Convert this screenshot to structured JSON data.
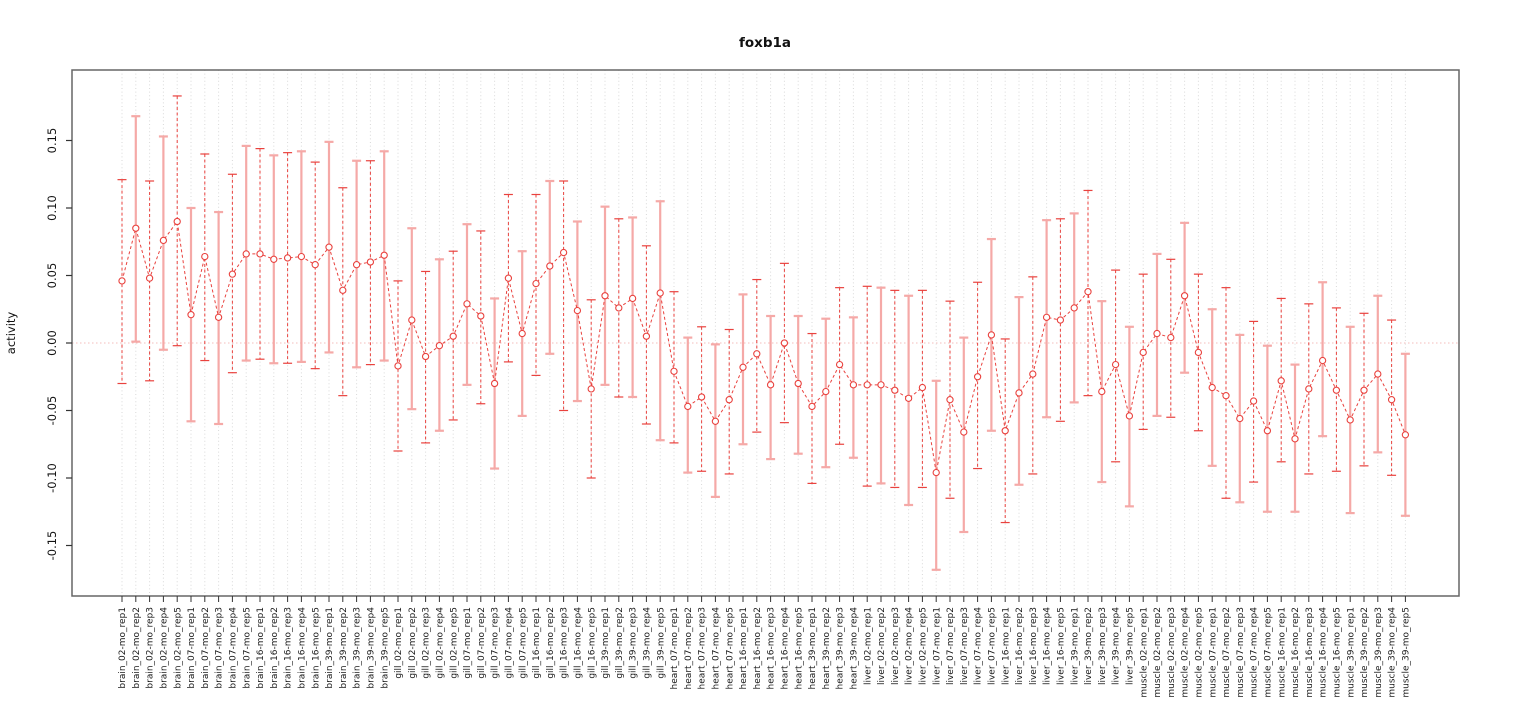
{
  "chart_data": {
    "type": "line",
    "title": "foxb1a",
    "ylabel": "activity",
    "xlabel": "",
    "ylim": [
      -0.187,
      0.202
    ],
    "legend": "none",
    "grid": "vertical dotted line at every sample position",
    "zero_reference_line": 0.0,
    "yticks": [
      {
        "value": 0.15,
        "label": "0.15"
      },
      {
        "value": 0.1,
        "label": "0.10"
      },
      {
        "value": 0.05,
        "label": "0.05"
      },
      {
        "value": 0.0,
        "label": "0.00"
      },
      {
        "value": -0.05,
        "label": "-0.05"
      },
      {
        "value": -0.1,
        "label": "-0.10"
      },
      {
        "value": -0.15,
        "label": "-0.15"
      }
    ],
    "colors": {
      "series": "#e9423e",
      "error_bar": "#f5a9a7",
      "zero_line": "#f5bdbb",
      "grid": "#d9d9d9",
      "axis": "#666666",
      "tick": "#333333",
      "text": "#111111"
    },
    "samples": [
      {
        "label": "brain_02-mo_rep1",
        "mean": 0.046,
        "lo": -0.03,
        "hi": 0.121
      },
      {
        "label": "brain_02-mo_rep2",
        "mean": 0.085,
        "lo": 0.001,
        "hi": 0.168
      },
      {
        "label": "brain_02-mo_rep3",
        "mean": 0.048,
        "lo": -0.028,
        "hi": 0.12
      },
      {
        "label": "brain_02-mo_rep4",
        "mean": 0.076,
        "lo": -0.005,
        "hi": 0.153
      },
      {
        "label": "brain_02-mo_rep5",
        "mean": 0.09,
        "lo": -0.002,
        "hi": 0.183
      },
      {
        "label": "brain_07-mo_rep1",
        "mean": 0.021,
        "lo": -0.058,
        "hi": 0.1
      },
      {
        "label": "brain_07-mo_rep2",
        "mean": 0.064,
        "lo": -0.013,
        "hi": 0.14
      },
      {
        "label": "brain_07-mo_rep3",
        "mean": 0.019,
        "lo": -0.06,
        "hi": 0.097
      },
      {
        "label": "brain_07-mo_rep4",
        "mean": 0.051,
        "lo": -0.022,
        "hi": 0.125
      },
      {
        "label": "brain_07-mo_rep5",
        "mean": 0.066,
        "lo": -0.013,
        "hi": 0.146
      },
      {
        "label": "brain_16-mo_rep1",
        "mean": 0.066,
        "lo": -0.012,
        "hi": 0.144
      },
      {
        "label": "brain_16-mo_rep2",
        "mean": 0.062,
        "lo": -0.015,
        "hi": 0.139
      },
      {
        "label": "brain_16-mo_rep3",
        "mean": 0.063,
        "lo": -0.015,
        "hi": 0.141
      },
      {
        "label": "brain_16-mo_rep4",
        "mean": 0.064,
        "lo": -0.014,
        "hi": 0.142
      },
      {
        "label": "brain_16-mo_rep5",
        "mean": 0.058,
        "lo": -0.019,
        "hi": 0.134
      },
      {
        "label": "brain_39-mo_rep1",
        "mean": 0.071,
        "lo": -0.007,
        "hi": 0.149
      },
      {
        "label": "brain_39-mo_rep2",
        "mean": 0.039,
        "lo": -0.039,
        "hi": 0.115
      },
      {
        "label": "brain_39-mo_rep3",
        "mean": 0.058,
        "lo": -0.018,
        "hi": 0.135
      },
      {
        "label": "brain_39-mo_rep4",
        "mean": 0.06,
        "lo": -0.016,
        "hi": 0.135
      },
      {
        "label": "brain_39-mo_rep5",
        "mean": 0.065,
        "lo": -0.013,
        "hi": 0.142
      },
      {
        "label": "gill_02-mo_rep1",
        "mean": -0.017,
        "lo": -0.08,
        "hi": 0.046
      },
      {
        "label": "gill_02-mo_rep2",
        "mean": 0.017,
        "lo": -0.049,
        "hi": 0.085
      },
      {
        "label": "gill_02-mo_rep3",
        "mean": -0.01,
        "lo": -0.074,
        "hi": 0.053
      },
      {
        "label": "gill_02-mo_rep4",
        "mean": -0.002,
        "lo": -0.065,
        "hi": 0.062
      },
      {
        "label": "gill_02-mo_rep5",
        "mean": 0.005,
        "lo": -0.057,
        "hi": 0.068
      },
      {
        "label": "gill_07-mo_rep1",
        "mean": 0.029,
        "lo": -0.031,
        "hi": 0.088
      },
      {
        "label": "gill_07-mo_rep2",
        "mean": 0.02,
        "lo": -0.045,
        "hi": 0.083
      },
      {
        "label": "gill_07-mo_rep3",
        "mean": -0.03,
        "lo": -0.093,
        "hi": 0.033
      },
      {
        "label": "gill_07-mo_rep4",
        "mean": 0.048,
        "lo": -0.014,
        "hi": 0.11
      },
      {
        "label": "gill_07-mo_rep5",
        "mean": 0.007,
        "lo": -0.054,
        "hi": 0.068
      },
      {
        "label": "gill_16-mo_rep1",
        "mean": 0.044,
        "lo": -0.024,
        "hi": 0.11
      },
      {
        "label": "gill_16-mo_rep2",
        "mean": 0.057,
        "lo": -0.008,
        "hi": 0.12
      },
      {
        "label": "gill_16-mo_rep3",
        "mean": 0.067,
        "lo": -0.05,
        "hi": 0.12
      },
      {
        "label": "gill_16-mo_rep4",
        "mean": 0.024,
        "lo": -0.043,
        "hi": 0.09
      },
      {
        "label": "gill_16-mo_rep5",
        "mean": -0.034,
        "lo": -0.1,
        "hi": 0.032
      },
      {
        "label": "gill_39-mo_rep1",
        "mean": 0.035,
        "lo": -0.031,
        "hi": 0.101
      },
      {
        "label": "gill_39-mo_rep2",
        "mean": 0.026,
        "lo": -0.04,
        "hi": 0.092
      },
      {
        "label": "gill_39-mo_rep3",
        "mean": 0.033,
        "lo": -0.04,
        "hi": 0.093
      },
      {
        "label": "gill_39-mo_rep4",
        "mean": 0.005,
        "lo": -0.06,
        "hi": 0.072
      },
      {
        "label": "gill_39-mo_rep5",
        "mean": 0.037,
        "lo": -0.072,
        "hi": 0.105
      },
      {
        "label": "heart_07-mo_rep1",
        "mean": -0.021,
        "lo": -0.074,
        "hi": 0.038
      },
      {
        "label": "heart_07-mo_rep2",
        "mean": -0.047,
        "lo": -0.096,
        "hi": 0.004
      },
      {
        "label": "heart_07-mo_rep3",
        "mean": -0.04,
        "lo": -0.095,
        "hi": 0.012
      },
      {
        "label": "heart_07-mo_rep4",
        "mean": -0.058,
        "lo": -0.114,
        "hi": -0.001
      },
      {
        "label": "heart_07-mo_rep5",
        "mean": -0.042,
        "lo": -0.097,
        "hi": 0.01
      },
      {
        "label": "heart_16-mo_rep1",
        "mean": -0.018,
        "lo": -0.075,
        "hi": 0.036
      },
      {
        "label": "heart_16-mo_rep2",
        "mean": -0.008,
        "lo": -0.066,
        "hi": 0.047
      },
      {
        "label": "heart_16-mo_rep3",
        "mean": -0.031,
        "lo": -0.086,
        "hi": 0.02
      },
      {
        "label": "heart_16-mo_rep4",
        "mean": 0.0,
        "lo": -0.059,
        "hi": 0.059
      },
      {
        "label": "heart_16-mo_rep5",
        "mean": -0.03,
        "lo": -0.082,
        "hi": 0.02
      },
      {
        "label": "heart_39-mo_rep1",
        "mean": -0.047,
        "lo": -0.104,
        "hi": 0.007
      },
      {
        "label": "heart_39-mo_rep2",
        "mean": -0.036,
        "lo": -0.092,
        "hi": 0.018
      },
      {
        "label": "heart_39-mo_rep3",
        "mean": -0.016,
        "lo": -0.075,
        "hi": 0.041
      },
      {
        "label": "heart_39-mo_rep4",
        "mean": -0.031,
        "lo": -0.085,
        "hi": 0.019
      },
      {
        "label": "liver_02-mo_rep1",
        "mean": -0.031,
        "lo": -0.106,
        "hi": 0.042
      },
      {
        "label": "liver_02-mo_rep2",
        "mean": -0.031,
        "lo": -0.104,
        "hi": 0.041
      },
      {
        "label": "liver_02-mo_rep3",
        "mean": -0.035,
        "lo": -0.107,
        "hi": 0.039
      },
      {
        "label": "liver_02-mo_rep4",
        "mean": -0.041,
        "lo": -0.12,
        "hi": 0.035
      },
      {
        "label": "liver_02-mo_rep5",
        "mean": -0.033,
        "lo": -0.107,
        "hi": 0.039
      },
      {
        "label": "liver_07-mo_rep1",
        "mean": -0.096,
        "lo": -0.168,
        "hi": -0.028
      },
      {
        "label": "liver_07-mo_rep2",
        "mean": -0.042,
        "lo": -0.115,
        "hi": 0.031
      },
      {
        "label": "liver_07-mo_rep3",
        "mean": -0.066,
        "lo": -0.14,
        "hi": 0.004
      },
      {
        "label": "liver_07-mo_rep4",
        "mean": -0.025,
        "lo": -0.093,
        "hi": 0.045
      },
      {
        "label": "liver_07-mo_rep5",
        "mean": 0.006,
        "lo": -0.065,
        "hi": 0.077
      },
      {
        "label": "liver_16-mo_rep1",
        "mean": -0.065,
        "lo": -0.133,
        "hi": 0.003
      },
      {
        "label": "liver_16-mo_rep2",
        "mean": -0.037,
        "lo": -0.105,
        "hi": 0.034
      },
      {
        "label": "liver_16-mo_rep3",
        "mean": -0.023,
        "lo": -0.097,
        "hi": 0.049
      },
      {
        "label": "liver_16-mo_rep4",
        "mean": 0.019,
        "lo": -0.055,
        "hi": 0.091
      },
      {
        "label": "liver_16-mo_rep5",
        "mean": 0.017,
        "lo": -0.058,
        "hi": 0.092
      },
      {
        "label": "liver_39-mo_rep1",
        "mean": 0.026,
        "lo": -0.044,
        "hi": 0.096
      },
      {
        "label": "liver_39-mo_rep2",
        "mean": 0.038,
        "lo": -0.039,
        "hi": 0.113
      },
      {
        "label": "liver_39-mo_rep3",
        "mean": -0.036,
        "lo": -0.103,
        "hi": 0.031
      },
      {
        "label": "liver_39-mo_rep4",
        "mean": -0.016,
        "lo": -0.088,
        "hi": 0.054
      },
      {
        "label": "liver_39-mo_rep5",
        "mean": -0.054,
        "lo": -0.121,
        "hi": 0.012
      },
      {
        "label": "muscle_02-mo_rep1",
        "mean": -0.007,
        "lo": -0.064,
        "hi": 0.051
      },
      {
        "label": "muscle_02-mo_rep2",
        "mean": 0.007,
        "lo": -0.054,
        "hi": 0.066
      },
      {
        "label": "muscle_02-mo_rep3",
        "mean": 0.004,
        "lo": -0.055,
        "hi": 0.062
      },
      {
        "label": "muscle_02-mo_rep4",
        "mean": 0.035,
        "lo": -0.022,
        "hi": 0.089
      },
      {
        "label": "muscle_02-mo_rep5",
        "mean": -0.007,
        "lo": -0.065,
        "hi": 0.051
      },
      {
        "label": "muscle_07-mo_rep1",
        "mean": -0.033,
        "lo": -0.091,
        "hi": 0.025
      },
      {
        "label": "muscle_07-mo_rep2",
        "mean": -0.039,
        "lo": -0.115,
        "hi": 0.041
      },
      {
        "label": "muscle_07-mo_rep3",
        "mean": -0.056,
        "lo": -0.118,
        "hi": 0.006
      },
      {
        "label": "muscle_07-mo_rep4",
        "mean": -0.043,
        "lo": -0.103,
        "hi": 0.016
      },
      {
        "label": "muscle_07-mo_rep5",
        "mean": -0.065,
        "lo": -0.125,
        "hi": -0.002
      },
      {
        "label": "muscle_16-mo_rep1",
        "mean": -0.028,
        "lo": -0.088,
        "hi": 0.033
      },
      {
        "label": "muscle_16-mo_rep2",
        "mean": -0.071,
        "lo": -0.125,
        "hi": -0.016
      },
      {
        "label": "muscle_16-mo_rep3",
        "mean": -0.034,
        "lo": -0.097,
        "hi": 0.029
      },
      {
        "label": "muscle_16-mo_rep4",
        "mean": -0.013,
        "lo": -0.069,
        "hi": 0.045
      },
      {
        "label": "muscle_16-mo_rep5",
        "mean": -0.035,
        "lo": -0.095,
        "hi": 0.026
      },
      {
        "label": "muscle_39-mo_rep1",
        "mean": -0.057,
        "lo": -0.126,
        "hi": 0.012
      },
      {
        "label": "muscle_39-mo_rep2",
        "mean": -0.035,
        "lo": -0.091,
        "hi": 0.022
      },
      {
        "label": "muscle_39-mo_rep3",
        "mean": -0.023,
        "lo": -0.081,
        "hi": 0.035
      },
      {
        "label": "muscle_39-mo_rep4",
        "mean": -0.042,
        "lo": -0.098,
        "hi": 0.017
      },
      {
        "label": "muscle_39-mo_rep5",
        "mean": -0.068,
        "lo": -0.128,
        "hi": -0.008
      }
    ]
  }
}
